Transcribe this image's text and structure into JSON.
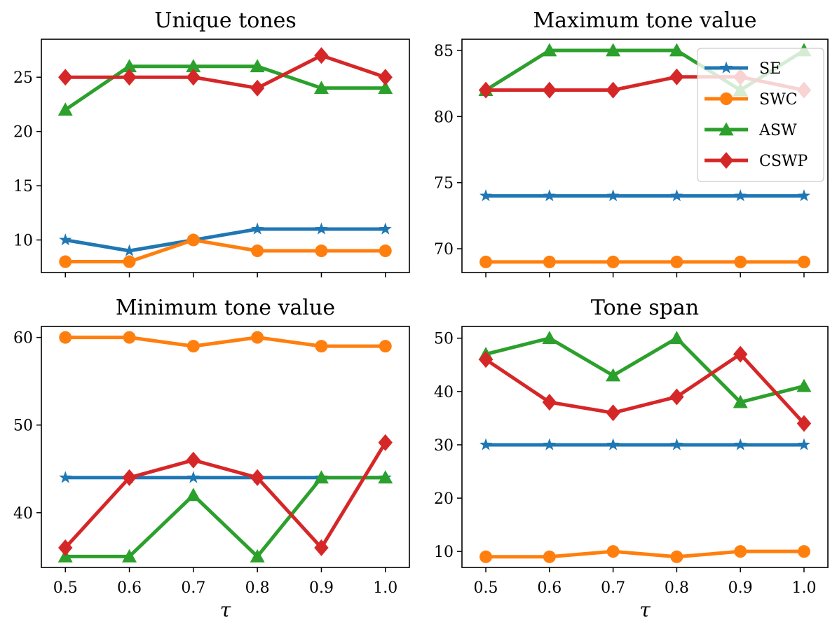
{
  "colors": {
    "SE": "#1f77b4",
    "SWC": "#ff7f0e",
    "ASW": "#2ca02c",
    "CSWP": "#d62728"
  },
  "legend": {
    "placement": "upper-right of Maximum tone value panel",
    "entries": [
      {
        "name": "SE",
        "marker": "star"
      },
      {
        "name": "SWC",
        "marker": "circle"
      },
      {
        "name": "ASW",
        "marker": "triangle"
      },
      {
        "name": "CSWP",
        "marker": "diamond"
      }
    ]
  },
  "chart_data": [
    {
      "type": "line",
      "title": "Unique tones",
      "xlabel": "",
      "ylabel": "",
      "x": [
        0.5,
        0.6,
        0.7,
        0.8,
        0.9,
        1.0
      ],
      "x_ticks": [
        "0.5",
        "0.6",
        "0.7",
        "0.8",
        "0.9",
        "1.0"
      ],
      "ylim": [
        7.0,
        28.5
      ],
      "y_ticks": [
        10,
        15,
        20,
        25
      ],
      "series": [
        {
          "name": "SE",
          "values": [
            10,
            9,
            10,
            11,
            11,
            11
          ]
        },
        {
          "name": "SWC",
          "values": [
            8,
            8,
            10,
            9,
            9,
            9
          ]
        },
        {
          "name": "ASW",
          "values": [
            22,
            26,
            26,
            26,
            24,
            24
          ]
        },
        {
          "name": "CSWP",
          "values": [
            25,
            25,
            25,
            24,
            27,
            25
          ]
        }
      ]
    },
    {
      "type": "line",
      "title": "Maximum tone value",
      "xlabel": "",
      "ylabel": "",
      "x": [
        0.5,
        0.6,
        0.7,
        0.8,
        0.9,
        1.0
      ],
      "x_ticks": [
        "0.5",
        "0.6",
        "0.7",
        "0.8",
        "0.9",
        "1.0"
      ],
      "ylim": [
        68.2,
        85.85
      ],
      "y_ticks": [
        70,
        75,
        80,
        85
      ],
      "series": [
        {
          "name": "SE",
          "values": [
            74,
            74,
            74,
            74,
            74,
            74
          ]
        },
        {
          "name": "SWC",
          "values": [
            69,
            69,
            69,
            69,
            69,
            69
          ]
        },
        {
          "name": "ASW",
          "values": [
            82,
            85,
            85,
            85,
            82,
            85
          ]
        },
        {
          "name": "CSWP",
          "values": [
            82,
            82,
            82,
            83,
            83,
            82
          ]
        }
      ]
    },
    {
      "type": "line",
      "title": "Minimum tone value",
      "xlabel": "τ",
      "ylabel": "",
      "x": [
        0.5,
        0.6,
        0.7,
        0.8,
        0.9,
        1.0
      ],
      "x_ticks": [
        "0.5",
        "0.6",
        "0.7",
        "0.8",
        "0.9",
        "1.0"
      ],
      "ylim": [
        33.75,
        61.25
      ],
      "y_ticks": [
        40,
        50,
        60
      ],
      "series": [
        {
          "name": "SE",
          "values": [
            44,
            44,
            44,
            44,
            44,
            44
          ]
        },
        {
          "name": "SWC",
          "values": [
            60,
            60,
            59,
            60,
            59,
            59
          ]
        },
        {
          "name": "ASW",
          "values": [
            35,
            35,
            42,
            35,
            44,
            44
          ]
        },
        {
          "name": "CSWP",
          "values": [
            36,
            44,
            46,
            44,
            36,
            48
          ]
        }
      ]
    },
    {
      "type": "line",
      "title": "Tone span",
      "xlabel": "τ",
      "ylabel": "",
      "x": [
        0.5,
        0.6,
        0.7,
        0.8,
        0.9,
        1.0
      ],
      "x_ticks": [
        "0.5",
        "0.6",
        "0.7",
        "0.8",
        "0.9",
        "1.0"
      ],
      "ylim": [
        7.0,
        52.2
      ],
      "y_ticks": [
        10,
        20,
        30,
        40,
        50
      ],
      "series": [
        {
          "name": "SE",
          "values": [
            30,
            30,
            30,
            30,
            30,
            30
          ]
        },
        {
          "name": "SWC",
          "values": [
            9,
            9,
            10,
            9,
            10,
            10
          ]
        },
        {
          "name": "ASW",
          "values": [
            47,
            50,
            43,
            50,
            38,
            41
          ]
        },
        {
          "name": "CSWP",
          "values": [
            46,
            38,
            36,
            39,
            47,
            34
          ]
        }
      ]
    }
  ]
}
